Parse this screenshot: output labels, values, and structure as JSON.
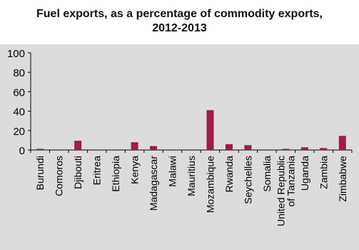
{
  "chart_data": {
    "type": "bar",
    "title_lines": [
      "Fuel exports, as a percentage of commodity exports,",
      "2012-2013"
    ],
    "xlabel": "",
    "ylabel": "",
    "ylim": [
      0,
      100
    ],
    "yticks": [
      0,
      20,
      40,
      60,
      80,
      100
    ],
    "categories": [
      "Burundi",
      "Comoros",
      "Djibouti",
      "Eritrea",
      "Ethiopia",
      "Kenya",
      "Madagascar",
      "Malawi",
      "Mauritius",
      "Mozambique",
      "Rwanda",
      "Seychelles",
      "Somalia",
      "United Republic of Tanzania",
      "Uganda",
      "Zambia",
      "Zimbabwe"
    ],
    "category_label_lines": [
      [
        "Burundi"
      ],
      [
        "Comoros"
      ],
      [
        "Djibouti"
      ],
      [
        "Eritrea"
      ],
      [
        "Ethiopia"
      ],
      [
        "Kenya"
      ],
      [
        "Madagascar"
      ],
      [
        "Malawi"
      ],
      [
        "Mauritius"
      ],
      [
        "Mozambique"
      ],
      [
        "Rwanda"
      ],
      [
        "Seychelles"
      ],
      [
        "Somalia"
      ],
      [
        "United Republic",
        "of Tanzania"
      ],
      [
        "Uganda"
      ],
      [
        "Zambia"
      ],
      [
        "Zimbabwe"
      ]
    ],
    "values": [
      1.2,
      0,
      9.5,
      0,
      0,
      8,
      4,
      0,
      0,
      41,
      6,
      5,
      0,
      1.2,
      2.8,
      2,
      14.5
    ],
    "bar_color": "#9e1b4a",
    "grid": false,
    "legend": "none"
  }
}
